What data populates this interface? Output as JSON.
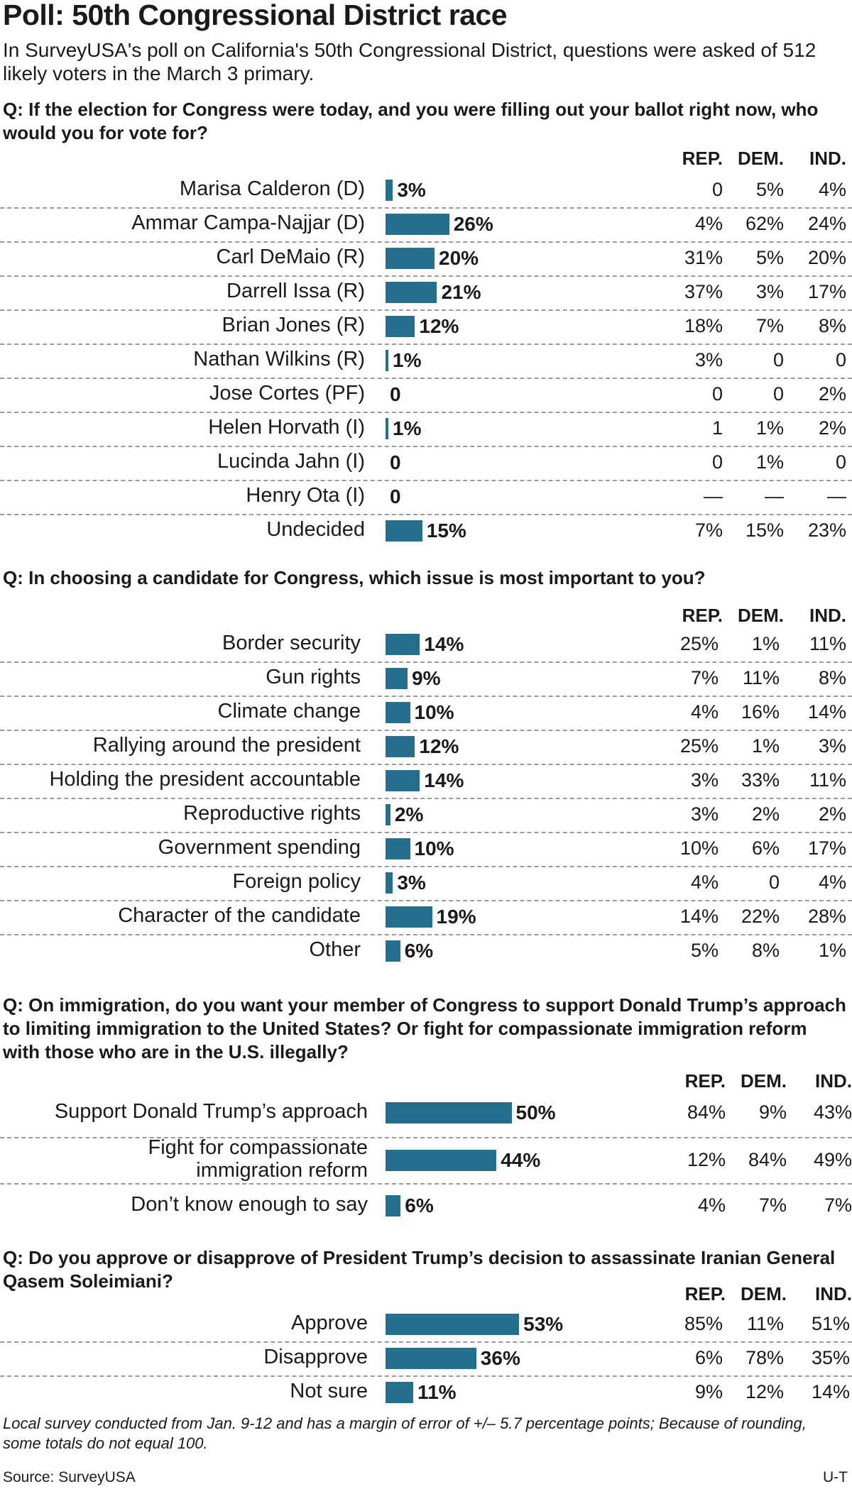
{
  "title": "Poll: 50th Congressional District race",
  "subtitle": "In SurveyUSA's poll on California's 50th Congressional District, questions were asked of 512 likely voters in the March 3 primary.",
  "footnote": "Local survey conducted from Jan. 9-12 and has a margin of error of +/– 5.7 percentage points; Because of rounding, some totals do not equal 100.",
  "source": "Source: SurveyUSA",
  "credit": "U-T",
  "colors": {
    "bar": "#256f8e",
    "divider": "#9a9a9a",
    "text": "#1a1a1a"
  },
  "chart_data": [
    {
      "type": "bar",
      "orientation": "horizontal",
      "title": "Q:  If the election for Congress were today, and you were filling out your ballot right now, who would you for vote for?",
      "columns": [
        "REP.",
        "DEM.",
        "IND."
      ],
      "categories": [
        "Marisa Calderon (D)",
        "Ammar Campa-Najjar (D)",
        "Carl DeMaio (R)",
        "Darrell Issa (R)",
        "Brian Jones (R)",
        "Nathan Wilkins (R)",
        "Jose Cortes (PF)",
        "Helen Horvath (I)",
        "Lucinda Jahn (I)",
        "Henry Ota (I)",
        "Undecided"
      ],
      "values": [
        3,
        26,
        20,
        21,
        12,
        1,
        0,
        1,
        0,
        0,
        15
      ],
      "value_labels": [
        "3%",
        "26%",
        "20%",
        "21%",
        "12%",
        "1%",
        "0",
        "1%",
        "0",
        "0",
        "15%"
      ],
      "breakdown": [
        [
          "0",
          "5%",
          "4%"
        ],
        [
          "4%",
          "62%",
          "24%"
        ],
        [
          "31%",
          "5%",
          "20%"
        ],
        [
          "37%",
          "3%",
          "17%"
        ],
        [
          "18%",
          "7%",
          "8%"
        ],
        [
          "3%",
          "0",
          "0"
        ],
        [
          "0",
          "0",
          "2%"
        ],
        [
          "1",
          "1%",
          "2%"
        ],
        [
          "0",
          "1%",
          "0"
        ],
        [
          "—",
          "—",
          "—"
        ],
        [
          "7%",
          "15%",
          "23%"
        ]
      ]
    },
    {
      "type": "bar",
      "orientation": "horizontal",
      "title": "Q: In choosing a candidate for Congress, which issue is most important to you?",
      "columns": [
        "REP.",
        "DEM.",
        "IND."
      ],
      "categories": [
        "Border security",
        "Gun rights",
        "Climate change",
        "Rallying around the president",
        "Holding the president accountable",
        "Reproductive rights",
        "Government spending",
        "Foreign policy",
        "Character of the candidate",
        "Other"
      ],
      "values": [
        14,
        9,
        10,
        12,
        14,
        2,
        10,
        3,
        19,
        6
      ],
      "value_labels": [
        "14%",
        "9%",
        "10%",
        "12%",
        "14%",
        "2%",
        "10%",
        "3%",
        "19%",
        "6%"
      ],
      "breakdown": [
        [
          "25%",
          "1%",
          "11%"
        ],
        [
          "7%",
          "11%",
          "8%"
        ],
        [
          "4%",
          "16%",
          "14%"
        ],
        [
          "25%",
          "1%",
          "3%"
        ],
        [
          "3%",
          "33%",
          "11%"
        ],
        [
          "3%",
          "2%",
          "2%"
        ],
        [
          "10%",
          "6%",
          "17%"
        ],
        [
          "4%",
          "0",
          "4%"
        ],
        [
          "14%",
          "22%",
          "28%"
        ],
        [
          "5%",
          "8%",
          "1%"
        ]
      ]
    },
    {
      "type": "bar",
      "orientation": "horizontal",
      "title": "Q: On immigration, do you want your member of Congress to support Donald Trump’s approach to limiting immigration to the United States? Or fight for compassionate immigration reform with those who are in the U.S. illegally?",
      "columns": [
        "REP.",
        "DEM.",
        "IND."
      ],
      "categories": [
        "Support Donald Trump’s approach",
        "Fight for compassionate immigration reform",
        "Don’t know enough to say"
      ],
      "category_lines": [
        [
          "Support Donald Trump’s approach"
        ],
        [
          "Fight for compassionate",
          "immigration reform"
        ],
        [
          "Don’t know enough to say"
        ]
      ],
      "values": [
        50,
        44,
        6
      ],
      "value_labels": [
        "50%",
        "44%",
        "6%"
      ],
      "breakdown": [
        [
          "84%",
          "9%",
          "43%"
        ],
        [
          "12%",
          "84%",
          "49%"
        ],
        [
          "4%",
          "7%",
          "7%"
        ]
      ]
    },
    {
      "type": "bar",
      "orientation": "horizontal",
      "title": "Q: Do you approve or disapprove of President Trump’s decision to assassinate Iranian General Qasem Soleimiani?",
      "columns": [
        "REP.",
        "DEM.",
        "IND."
      ],
      "categories": [
        "Approve",
        "Disapprove",
        "Not sure"
      ],
      "values": [
        53,
        36,
        11
      ],
      "value_labels": [
        "53%",
        "36%",
        "11%"
      ],
      "breakdown": [
        [
          "85%",
          "11%",
          "51%"
        ],
        [
          "6%",
          "78%",
          "35%"
        ],
        [
          "9%",
          "12%",
          "14%"
        ]
      ]
    }
  ]
}
